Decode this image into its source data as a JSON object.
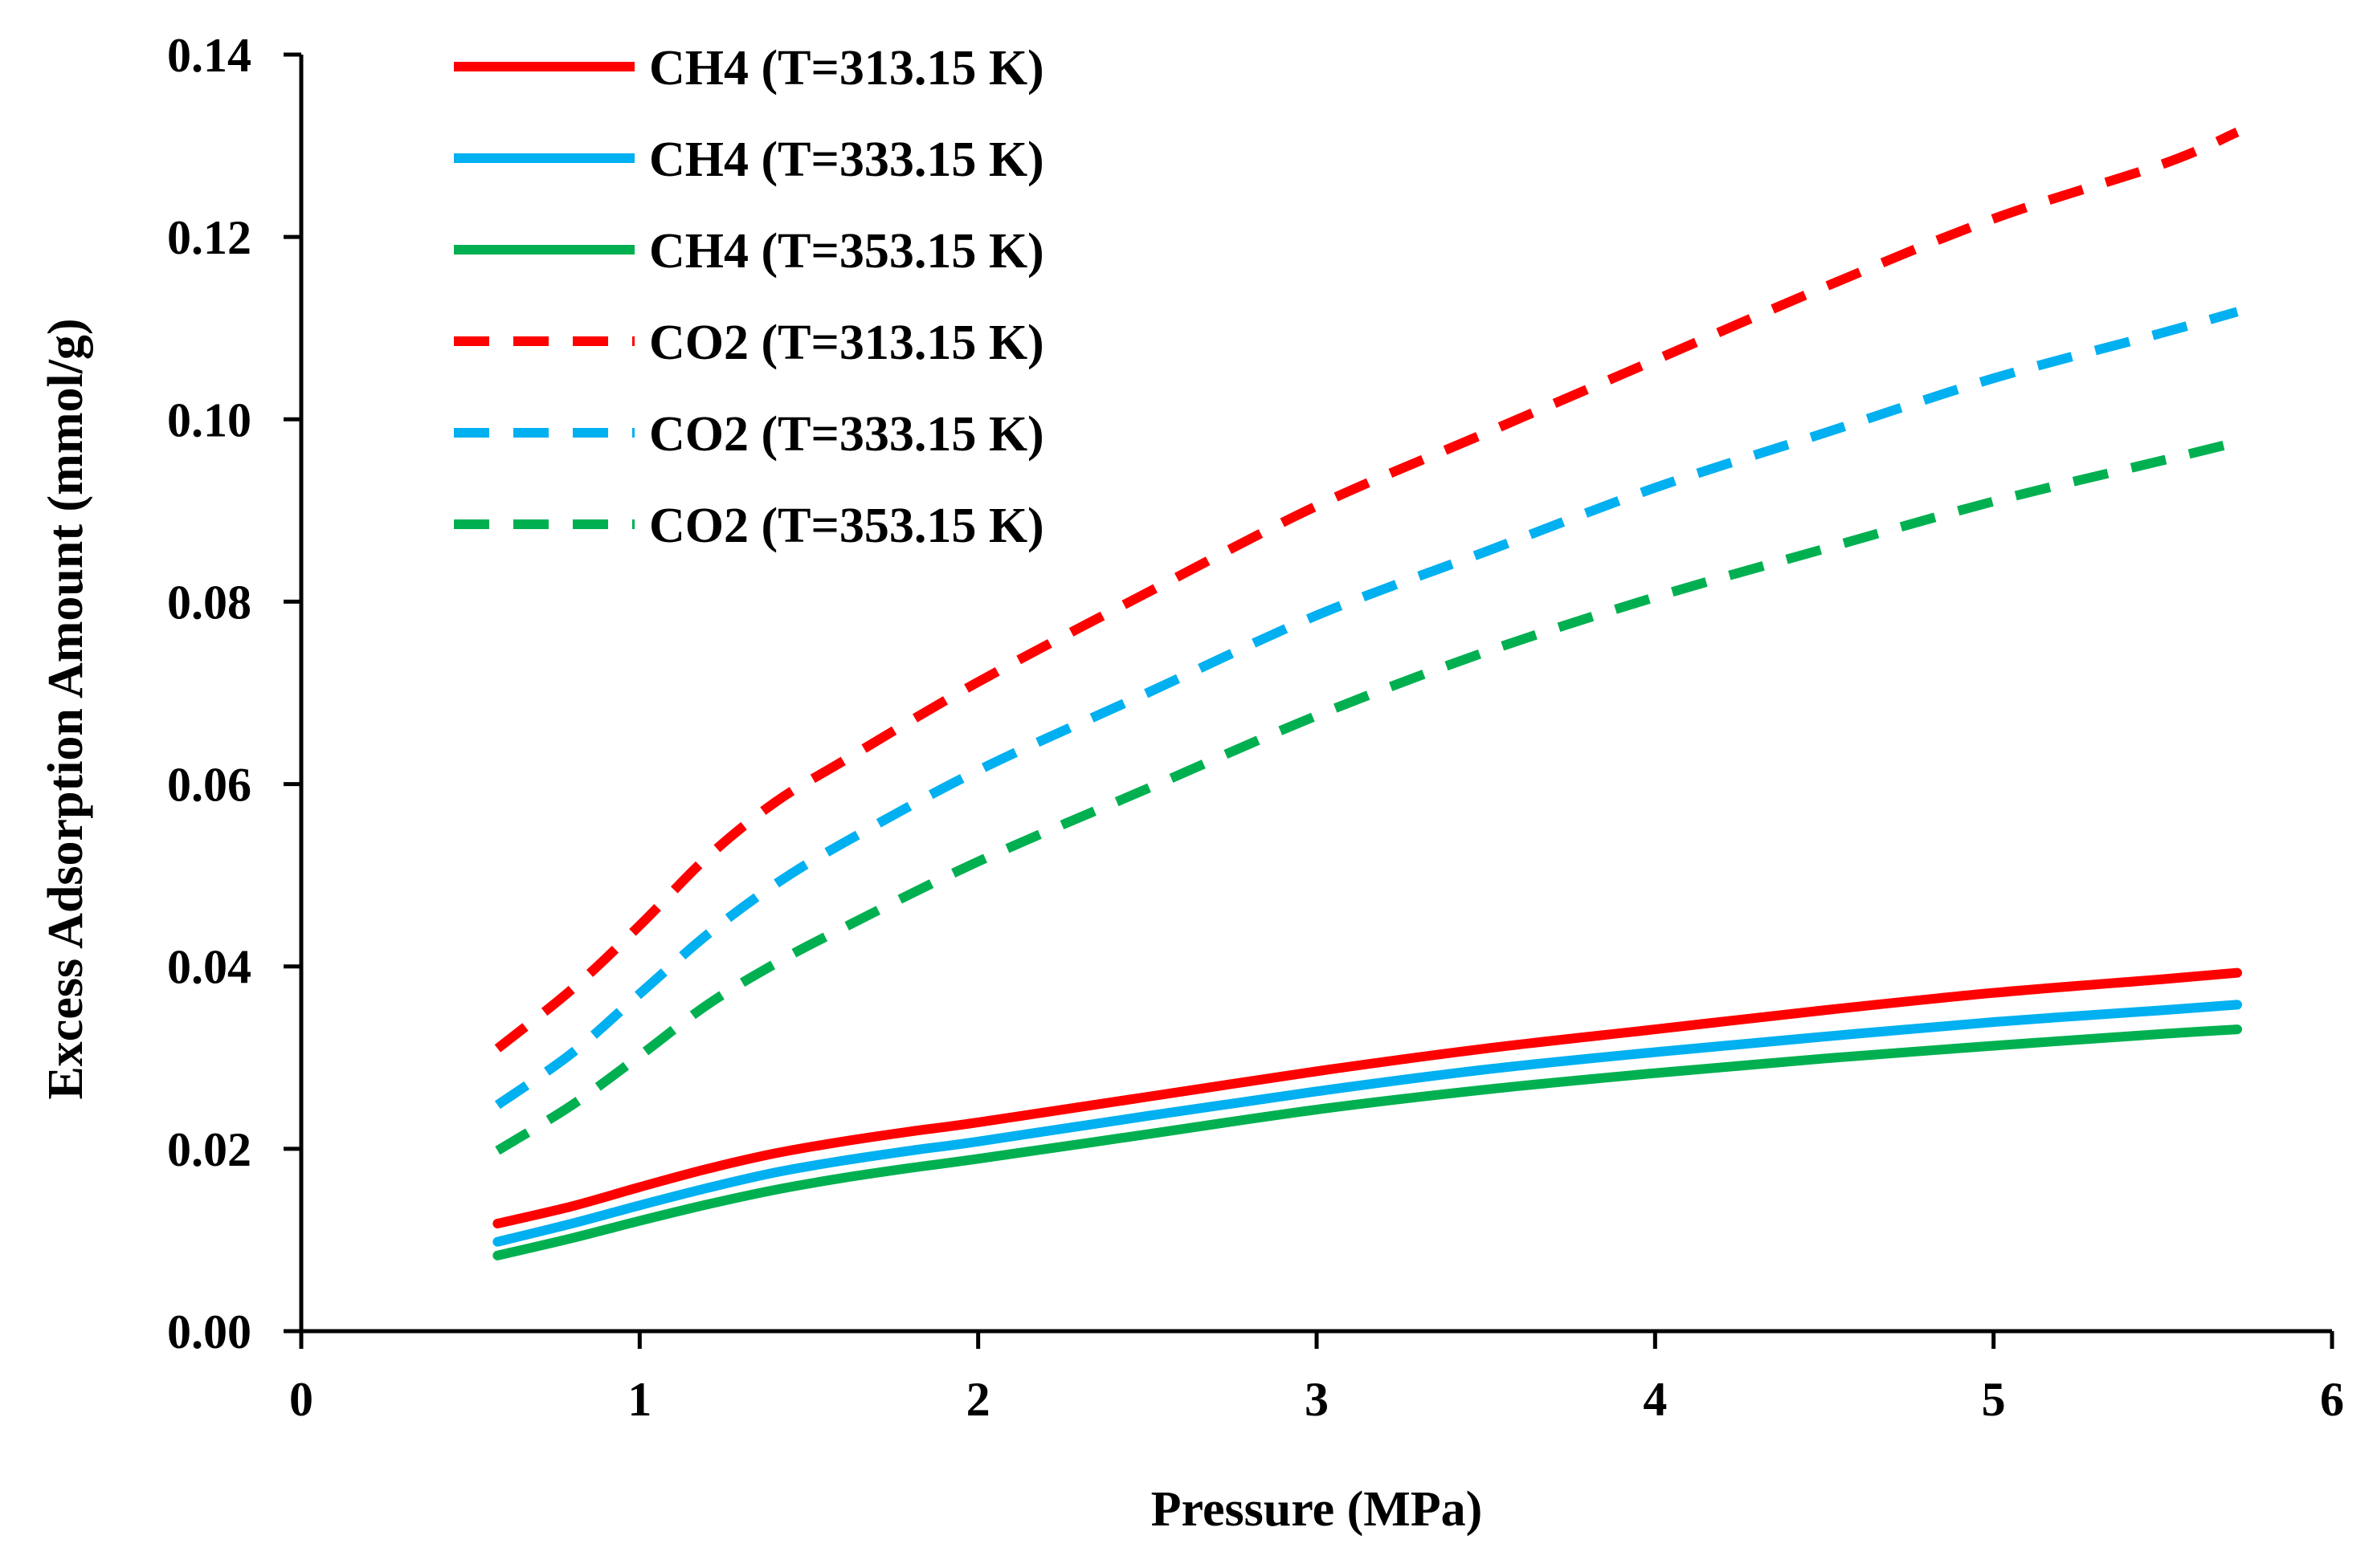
{
  "chart_data": {
    "type": "line",
    "title": "",
    "xlabel": "Pressure (MPa)",
    "ylabel": "Excess Adsorption Amount (mmol/g)",
    "xlim": [
      0,
      6
    ],
    "ylim": [
      0,
      0.14
    ],
    "x_ticks": [
      "0",
      "1",
      "2",
      "3",
      "4",
      "5",
      "6"
    ],
    "y_ticks": [
      "0.00",
      "0.02",
      "0.04",
      "0.06",
      "0.08",
      "0.10",
      "0.12",
      "0.14"
    ],
    "grid": false,
    "legend_position": "top-left",
    "series": [
      {
        "name": "CH4 (T=313.15 K)",
        "color": "#ff0000",
        "style": "solid",
        "x": [
          0.58,
          0.8,
          1.0,
          1.2,
          1.4,
          1.6,
          1.8,
          2.0,
          2.5,
          3.0,
          3.5,
          4.0,
          4.5,
          5.0,
          5.5,
          5.72
        ],
        "y": [
          0.0118,
          0.0137,
          0.0158,
          0.0178,
          0.0195,
          0.0208,
          0.0219,
          0.0229,
          0.0257,
          0.0285,
          0.031,
          0.0331,
          0.0352,
          0.0371,
          0.0386,
          0.0393
        ]
      },
      {
        "name": "CH4 (T=333.15 K)",
        "color": "#00b0f0",
        "style": "solid",
        "x": [
          0.58,
          0.8,
          1.0,
          1.2,
          1.4,
          1.6,
          1.8,
          2.0,
          2.5,
          3.0,
          3.5,
          4.0,
          4.5,
          5.0,
          5.5,
          5.72
        ],
        "y": [
          0.0098,
          0.0118,
          0.0138,
          0.0157,
          0.0174,
          0.0187,
          0.0198,
          0.0208,
          0.0236,
          0.0263,
          0.0287,
          0.0306,
          0.0323,
          0.0339,
          0.0352,
          0.0358
        ]
      },
      {
        "name": "CH4 (T=353.15 K)",
        "color": "#00b050",
        "style": "solid",
        "x": [
          0.58,
          0.8,
          1.0,
          1.2,
          1.4,
          1.6,
          1.8,
          2.0,
          2.5,
          3.0,
          3.5,
          4.0,
          4.5,
          5.0,
          5.5,
          5.72
        ],
        "y": [
          0.0083,
          0.0102,
          0.0121,
          0.0139,
          0.0155,
          0.0168,
          0.0179,
          0.0189,
          0.0216,
          0.0243,
          0.0265,
          0.0283,
          0.0299,
          0.0313,
          0.0326,
          0.0331
        ]
      },
      {
        "name": "CO2 (T=313.15 K)",
        "color": "#ff0000",
        "style": "dashed",
        "x": [
          0.58,
          0.8,
          1.0,
          1.2,
          1.4,
          1.6,
          2.0,
          2.5,
          3.0,
          3.5,
          4.0,
          4.5,
          5.0,
          5.5,
          5.72
        ],
        "y": [
          0.031,
          0.0375,
          0.0445,
          0.052,
          0.058,
          0.0625,
          0.0712,
          0.081,
          0.0905,
          0.0985,
          0.1065,
          0.1145,
          0.122,
          0.128,
          0.1315
        ]
      },
      {
        "name": "CO2 (T=333.15 K)",
        "color": "#00b0f0",
        "style": "dashed",
        "x": [
          0.58,
          0.8,
          1.0,
          1.2,
          1.4,
          1.6,
          2.0,
          2.5,
          3.0,
          3.5,
          4.0,
          4.5,
          5.0,
          5.5,
          5.72
        ],
        "y": [
          0.0248,
          0.0305,
          0.037,
          0.0435,
          0.049,
          0.0535,
          0.0615,
          0.07,
          0.0785,
          0.0855,
          0.0925,
          0.0985,
          0.1045,
          0.1095,
          0.1118
        ]
      },
      {
        "name": "CO2 (T=353.15 K)",
        "color": "#00b050",
        "style": "dashed",
        "x": [
          0.58,
          0.8,
          1.0,
          1.2,
          1.4,
          1.6,
          2.0,
          2.5,
          3.0,
          3.5,
          4.0,
          4.5,
          5.0,
          5.5,
          5.72
        ],
        "y": [
          0.0198,
          0.0248,
          0.0302,
          0.0358,
          0.0403,
          0.0442,
          0.0515,
          0.0595,
          0.0675,
          0.0745,
          0.0805,
          0.0858,
          0.091,
          0.0955,
          0.0975
        ]
      }
    ]
  }
}
